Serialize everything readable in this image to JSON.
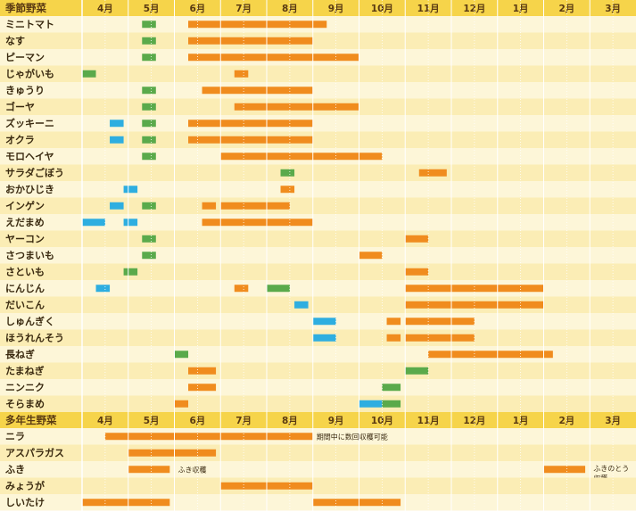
{
  "chart_data": {
    "type": "gantt",
    "months": [
      "4月",
      "5月",
      "6月",
      "7月",
      "8月",
      "9月",
      "10月",
      "11月",
      "12月",
      "1月",
      "2月",
      "3月"
    ],
    "sections": [
      {
        "title": "季節野菜",
        "rows": [
          {
            "name": "ミニトマト",
            "bars": [
              {
                "start": 5.3,
                "end": 5.6,
                "kind": "plant"
              },
              {
                "start": 6.3,
                "end": 9.3,
                "kind": "harvest"
              }
            ]
          },
          {
            "name": "なす",
            "bars": [
              {
                "start": 5.3,
                "end": 5.6,
                "kind": "plant"
              },
              {
                "start": 6.3,
                "end": 9.0,
                "kind": "harvest"
              }
            ]
          },
          {
            "name": "ピーマン",
            "bars": [
              {
                "start": 5.3,
                "end": 5.6,
                "kind": "plant"
              },
              {
                "start": 6.3,
                "end": 10.0,
                "kind": "harvest"
              }
            ]
          },
          {
            "name": "じゃがいも",
            "bars": [
              {
                "start": 4.0,
                "end": 4.3,
                "kind": "plant"
              },
              {
                "start": 7.3,
                "end": 7.6,
                "kind": "harvest"
              }
            ]
          },
          {
            "name": "きゅうり",
            "bars": [
              {
                "start": 5.3,
                "end": 5.6,
                "kind": "plant"
              },
              {
                "start": 6.6,
                "end": 9.0,
                "kind": "harvest"
              }
            ]
          },
          {
            "name": "ゴーヤ",
            "bars": [
              {
                "start": 5.3,
                "end": 5.6,
                "kind": "plant"
              },
              {
                "start": 7.3,
                "end": 10.0,
                "kind": "harvest"
              }
            ]
          },
          {
            "name": "ズッキーニ",
            "bars": [
              {
                "start": 4.6,
                "end": 4.9,
                "kind": "sow"
              },
              {
                "start": 5.3,
                "end": 5.6,
                "kind": "plant"
              },
              {
                "start": 6.3,
                "end": 9.0,
                "kind": "harvest"
              }
            ]
          },
          {
            "name": "オクラ",
            "bars": [
              {
                "start": 4.6,
                "end": 4.9,
                "kind": "sow"
              },
              {
                "start": 5.3,
                "end": 5.6,
                "kind": "plant"
              },
              {
                "start": 6.3,
                "end": 9.0,
                "kind": "harvest"
              }
            ]
          },
          {
            "name": "モロヘイヤ",
            "bars": [
              {
                "start": 5.3,
                "end": 5.6,
                "kind": "plant"
              },
              {
                "start": 7.0,
                "end": 10.5,
                "kind": "harvest"
              }
            ]
          },
          {
            "name": "サラダごぼう",
            "bars": [
              {
                "start": 8.3,
                "end": 8.6,
                "kind": "plant"
              },
              {
                "start": 11.3,
                "end": 11.9,
                "kind": "harvest"
              }
            ]
          },
          {
            "name": "おかひじき",
            "bars": [
              {
                "start": 4.9,
                "end": 5.2,
                "kind": "sow"
              },
              {
                "start": 8.3,
                "end": 8.6,
                "kind": "harvest"
              }
            ]
          },
          {
            "name": "インゲン",
            "bars": [
              {
                "start": 4.6,
                "end": 4.9,
                "kind": "sow"
              },
              {
                "start": 5.3,
                "end": 5.6,
                "kind": "plant"
              },
              {
                "start": 6.6,
                "end": 6.9,
                "kind": "harvest"
              },
              {
                "start": 7.0,
                "end": 8.5,
                "kind": "harvest"
              }
            ]
          },
          {
            "name": "えだまめ",
            "bars": [
              {
                "start": 4.0,
                "end": 4.5,
                "kind": "sow"
              },
              {
                "start": 4.9,
                "end": 5.2,
                "kind": "sow"
              },
              {
                "start": 6.6,
                "end": 9.0,
                "kind": "harvest"
              }
            ]
          },
          {
            "name": "ヤーコン",
            "bars": [
              {
                "start": 5.3,
                "end": 5.6,
                "kind": "plant"
              },
              {
                "start": 11.0,
                "end": 11.5,
                "kind": "harvest"
              }
            ]
          },
          {
            "name": "さつまいも",
            "bars": [
              {
                "start": 5.3,
                "end": 5.6,
                "kind": "plant"
              },
              {
                "start": 10.0,
                "end": 10.5,
                "kind": "harvest"
              }
            ]
          },
          {
            "name": "さといも",
            "bars": [
              {
                "start": 4.9,
                "end": 5.2,
                "kind": "plant"
              },
              {
                "start": 11.0,
                "end": 11.5,
                "kind": "harvest"
              }
            ]
          },
          {
            "name": "にんじん",
            "bars": [
              {
                "start": 4.3,
                "end": 4.6,
                "kind": "sow"
              },
              {
                "start": 7.3,
                "end": 7.6,
                "kind": "harvest"
              },
              {
                "start": 8.0,
                "end": 8.5,
                "kind": "plant"
              },
              {
                "start": 11.0,
                "end": 14.0,
                "kind": "harvest"
              }
            ]
          },
          {
            "name": "だいこん",
            "bars": [
              {
                "start": 8.6,
                "end": 8.9,
                "kind": "sow"
              },
              {
                "start": 11.0,
                "end": 14.0,
                "kind": "harvest"
              }
            ]
          },
          {
            "name": "しゅんぎく",
            "bars": [
              {
                "start": 9.0,
                "end": 9.5,
                "kind": "sow"
              },
              {
                "start": 10.6,
                "end": 10.9,
                "kind": "harvest"
              },
              {
                "start": 11.0,
                "end": 12.5,
                "kind": "harvest"
              }
            ]
          },
          {
            "name": "ほうれんそう",
            "bars": [
              {
                "start": 9.0,
                "end": 9.5,
                "kind": "sow"
              },
              {
                "start": 10.6,
                "end": 10.9,
                "kind": "harvest"
              },
              {
                "start": 11.0,
                "end": 12.5,
                "kind": "harvest"
              }
            ]
          },
          {
            "name": "長ねぎ",
            "bars": [
              {
                "start": 6.0,
                "end": 6.3,
                "kind": "plant"
              },
              {
                "start": 11.5,
                "end": 14.2,
                "kind": "harvest"
              }
            ]
          },
          {
            "name": "たまねぎ",
            "bars": [
              {
                "start": 6.3,
                "end": 6.9,
                "kind": "harvest"
              },
              {
                "start": 11.0,
                "end": 11.5,
                "kind": "plant"
              }
            ]
          },
          {
            "name": "ニンニク",
            "bars": [
              {
                "start": 6.3,
                "end": 6.9,
                "kind": "harvest"
              },
              {
                "start": 10.5,
                "end": 10.9,
                "kind": "plant"
              }
            ]
          },
          {
            "name": "そらまめ",
            "bars": [
              {
                "start": 6.0,
                "end": 6.3,
                "kind": "harvest"
              },
              {
                "start": 10.0,
                "end": 10.5,
                "kind": "sow"
              },
              {
                "start": 10.5,
                "end": 10.9,
                "kind": "plant"
              }
            ]
          }
        ]
      },
      {
        "title": "多年生野菜",
        "rows": [
          {
            "name": "ニラ",
            "bars": [
              {
                "start": 4.5,
                "end": 9.0,
                "kind": "harvest"
              }
            ],
            "note": "期間中に数回収穫可能",
            "note_at": 9.0
          },
          {
            "name": "アスパラガス",
            "bars": [
              {
                "start": 5.0,
                "end": 6.9,
                "kind": "harvest"
              }
            ]
          },
          {
            "name": "ふき",
            "bars": [
              {
                "start": 5.0,
                "end": 5.9,
                "kind": "harvest"
              },
              {
                "start": 14.0,
                "end": 14.9,
                "kind": "harvest"
              }
            ],
            "note": "ふき収穫",
            "note_at": 6.0,
            "note2": "ふきのとう\n収穫",
            "note2_at": 15.0
          },
          {
            "name": "みょうが",
            "bars": [
              {
                "start": 7.0,
                "end": 9.0,
                "kind": "harvest"
              }
            ]
          },
          {
            "name": "しいたけ",
            "bars": [
              {
                "start": 4.0,
                "end": 5.9,
                "kind": "harvest"
              },
              {
                "start": 9.0,
                "end": 10.9,
                "kind": "harvest"
              }
            ]
          }
        ]
      }
    ],
    "colors": {
      "harvest": "#f08c1e",
      "plant": "#5aaa4b",
      "sow": "#2eaee0",
      "header": "#f6d44a",
      "header_text": "#5a3a12",
      "row_a": "#fdf6d8",
      "row_b": "#fbedb5",
      "label_text": "#3a2a10",
      "grid": "#ffffff"
    }
  }
}
